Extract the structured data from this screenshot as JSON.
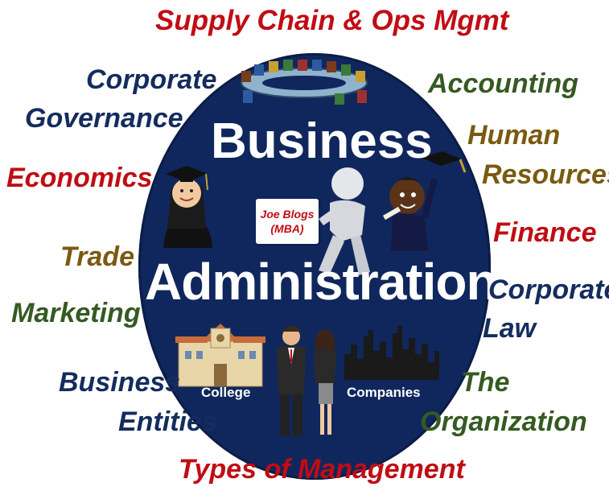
{
  "title_line1": "Business",
  "title_line2": "Administration",
  "sign": {
    "line1": "Joe Blogs",
    "line2": "(MBA)"
  },
  "captions": {
    "college": "College",
    "companies": "Companies"
  },
  "topics": {
    "supply_chain": "Supply Chain & Ops Mgmt",
    "corporate_governance_1": "Corporate",
    "corporate_governance_2": "Governance",
    "accounting": "Accounting",
    "human_resources_1": "Human",
    "human_resources_2": "Resources",
    "economics": "Economics",
    "finance": "Finance",
    "trade": "Trade",
    "corporate_law_1": "Corporate",
    "corporate_law_2": "Law",
    "marketing": "Marketing",
    "business_entities_1": "Business",
    "business_entities_2": "Entities",
    "the_organization_1": "The",
    "the_organization_2": "Organization",
    "types_of_management": "Types of Management"
  },
  "colors": {
    "circle": "#10275d",
    "red": "#c00d14",
    "navy": "#142c5e",
    "green": "#355a22",
    "gold": "#7a5a10"
  },
  "icons": [
    "meeting-table-icon",
    "graduate-woman-icon",
    "mba-figure-icon",
    "graduate-boy-icon",
    "college-building-icon",
    "business-people-icon",
    "city-skyline-icon"
  ]
}
